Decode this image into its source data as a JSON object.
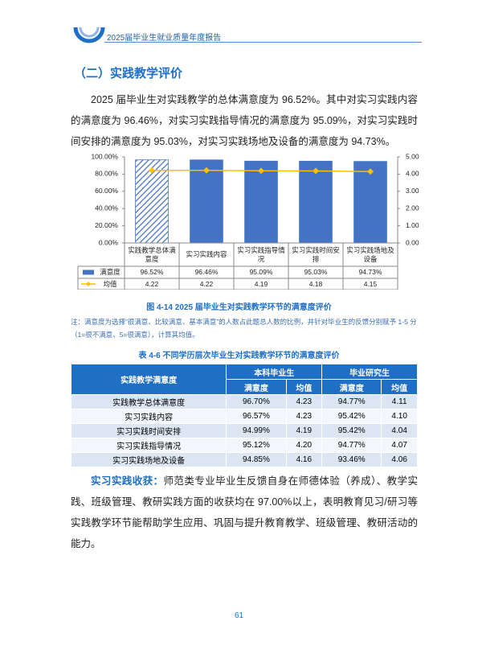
{
  "header": {
    "title": "2025届毕业生就业质量年度报告"
  },
  "section": {
    "title": "（二）实践教学评价"
  },
  "paragraphs": [
    "2025 届毕业生对实践教学的总体满意度为 96.52%。其中对实习实践内容的满意度为 96.46%，对实习实践指导情况的满意度为 95.09%，对实习实践时间安排的满意度为 95.03%，对实习实践场地及设备的满意度为 94.73%。"
  ],
  "chart_data": {
    "type": "bar-line",
    "categories": [
      "实践教学总体满意度",
      "实习实践内容",
      "实习实践指导情况",
      "实习实践时间安排",
      "实习实践场地及设备"
    ],
    "series": [
      {
        "name": "满意度",
        "color": "#4472c4",
        "values": [
          96.52,
          96.46,
          95.09,
          95.03,
          94.73
        ],
        "value_labels": [
          "96.52%",
          "96.46%",
          "95.09%",
          "95.03%",
          "94.73%"
        ],
        "hatched": [
          true,
          false,
          false,
          false,
          false
        ]
      },
      {
        "name": "均值",
        "color": "#ffc000",
        "axis": "y2",
        "values": [
          4.22,
          4.22,
          4.19,
          4.18,
          4.15
        ]
      }
    ],
    "ylim": [
      0,
      100
    ],
    "yticks": [
      {
        "value": 0,
        "label": "0.00%"
      },
      {
        "value": 20,
        "label": "20.00%"
      },
      {
        "value": 40,
        "label": "40.00%"
      },
      {
        "value": 60,
        "label": "60.00%"
      },
      {
        "value": 80,
        "label": "80.00%"
      },
      {
        "value": 100,
        "label": "100.00%"
      }
    ],
    "y2lim": [
      0,
      5
    ],
    "y2ticks": [
      {
        "value": 0,
        "label": "0.00"
      },
      {
        "value": 1,
        "label": "1.00"
      },
      {
        "value": 2,
        "label": "2.00"
      },
      {
        "value": 3,
        "label": "3.00"
      },
      {
        "value": 4,
        "label": "4.00"
      },
      {
        "value": 5,
        "label": "5.00"
      }
    ],
    "grid": false
  },
  "figure_caption": "图 4-14   2025 届毕业生对实践教学环节的满意度评价",
  "note": "注：满意度为选择“很满意、比较满意、基本满意”的人数占此题总人数的比例，并针对毕业生的反馈分别赋予 1-5 分（1=很不满意、5=很满意），计算其均值。",
  "table": {
    "title": "表 4-6   不同学历层次毕业生对实践教学环节的满意度评价",
    "header": {
      "label": "实践教学满意度",
      "groups": [
        "本科毕业生",
        "毕业研究生"
      ],
      "columns": [
        "满意度",
        "均值",
        "满意度",
        "均值"
      ]
    },
    "rows": [
      [
        "实践教学总体满意度",
        "96.70%",
        "4.23",
        "94.77%",
        "4.11"
      ],
      [
        "实习实践内容",
        "96.57%",
        "4.23",
        "95.42%",
        "4.10"
      ],
      [
        "实习实践时间安排",
        "94.99%",
        "4.19",
        "95.42%",
        "4.04"
      ],
      [
        "实习实践指导情况",
        "95.12%",
        "4.20",
        "94.77%",
        "4.07"
      ],
      [
        "实习实践场地及设备",
        "94.85%",
        "4.16",
        "93.46%",
        "4.06"
      ]
    ]
  },
  "closing": {
    "lead": "实习实践收获：",
    "text": "师范类专业毕业生反馈自身在师德体验（养成）、教学实践、班级管理、教研实践方面的收获均在 97.00%以上，表明教育见习/研习等实践教学环节能帮助学生应用、巩固与提升教育教学、班级管理、教研活动的能力。"
  },
  "page_number": "61"
}
